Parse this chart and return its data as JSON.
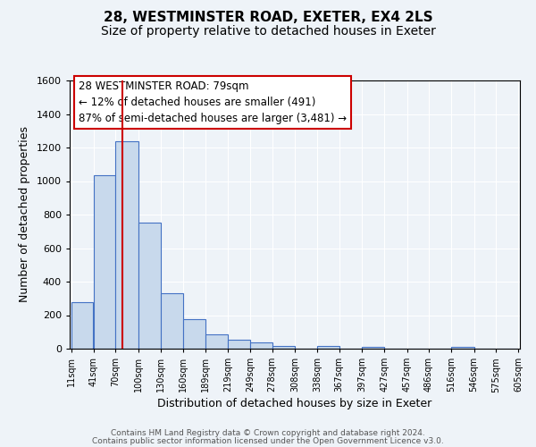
{
  "title": "28, WESTMINSTER ROAD, EXETER, EX4 2LS",
  "subtitle": "Size of property relative to detached houses in Exeter",
  "xlabel": "Distribution of detached houses by size in Exeter",
  "ylabel": "Number of detached properties",
  "bar_left_edges": [
    11,
    41,
    70,
    100,
    130,
    160,
    189,
    219,
    249,
    278,
    308,
    338,
    367,
    397,
    427,
    457,
    486,
    516,
    546,
    575
  ],
  "bar_heights": [
    280,
    1035,
    1240,
    750,
    330,
    175,
    85,
    52,
    40,
    18,
    0,
    14,
    0,
    12,
    0,
    0,
    0,
    10,
    0,
    0
  ],
  "bar_widths": [
    29,
    29,
    30,
    30,
    30,
    29,
    30,
    30,
    29,
    30,
    30,
    29,
    30,
    30,
    30,
    29,
    30,
    30,
    29,
    30
  ],
  "bar_color": "#c8d9ec",
  "bar_edge_color": "#4472c4",
  "vline_x": 79,
  "vline_color": "#cc0000",
  "ylim": [
    0,
    1600
  ],
  "yticks": [
    0,
    200,
    400,
    600,
    800,
    1000,
    1200,
    1400,
    1600
  ],
  "xtick_labels": [
    "11sqm",
    "41sqm",
    "70sqm",
    "100sqm",
    "130sqm",
    "160sqm",
    "189sqm",
    "219sqm",
    "249sqm",
    "278sqm",
    "308sqm",
    "338sqm",
    "367sqm",
    "397sqm",
    "427sqm",
    "457sqm",
    "486sqm",
    "516sqm",
    "546sqm",
    "575sqm",
    "605sqm"
  ],
  "annotation_line1": "28 WESTMINSTER ROAD: 79sqm",
  "annotation_line2": "← 12% of detached houses are smaller (491)",
  "annotation_line3": "87% of semi-detached houses are larger (3,481) →",
  "footer1": "Contains HM Land Registry data © Crown copyright and database right 2024.",
  "footer2": "Contains public sector information licensed under the Open Government Licence v3.0.",
  "bg_color": "#eef3f8",
  "plot_bg_color": "#eef3f8",
  "grid_color": "#ffffff",
  "title_fontsize": 11,
  "subtitle_fontsize": 10,
  "footer_color": "#555555"
}
